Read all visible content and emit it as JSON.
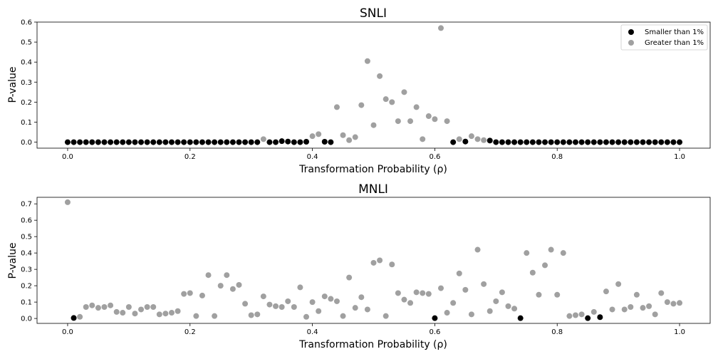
{
  "colors": {
    "smaller": "#000000",
    "greater": "#a0a0a0"
  },
  "chart_data": [
    {
      "type": "scatter",
      "title": "SNLI",
      "xlabel": "Transformation Probability (ρ)",
      "ylabel": "P-value",
      "xlim": [
        -0.05,
        1.05
      ],
      "ylim": [
        -0.03,
        0.6
      ],
      "xticks": [
        "0.0",
        "0.2",
        "0.4",
        "0.6",
        "0.8",
        "1.0"
      ],
      "yticks": [
        "0.0",
        "0.1",
        "0.2",
        "0.3",
        "0.4",
        "0.5",
        "0.6"
      ],
      "grid": false,
      "legend_position": "top-right",
      "series": [
        {
          "name": "Smaller than 1%",
          "color": "#000000",
          "x": [
            0.0,
            0.01,
            0.02,
            0.03,
            0.04,
            0.05,
            0.06,
            0.07,
            0.08,
            0.09,
            0.1,
            0.11,
            0.12,
            0.13,
            0.14,
            0.15,
            0.16,
            0.17,
            0.18,
            0.19,
            0.2,
            0.21,
            0.22,
            0.23,
            0.24,
            0.25,
            0.26,
            0.27,
            0.28,
            0.29,
            0.3,
            0.31,
            0.33,
            0.34,
            0.35,
            0.36,
            0.37,
            0.38,
            0.39,
            0.42,
            0.43,
            0.63,
            0.65,
            0.69,
            0.7,
            0.71,
            0.72,
            0.73,
            0.74,
            0.75,
            0.76,
            0.77,
            0.78,
            0.79,
            0.8,
            0.81,
            0.82,
            0.83,
            0.84,
            0.85,
            0.86,
            0.87,
            0.88,
            0.89,
            0.9,
            0.91,
            0.92,
            0.93,
            0.94,
            0.95,
            0.96,
            0.97,
            0.98,
            0.99,
            1.0
          ],
          "y": [
            0,
            0,
            0,
            0,
            0,
            0,
            0,
            0,
            0,
            0,
            0,
            0,
            0,
            0,
            0,
            0,
            0,
            0,
            0,
            0,
            0,
            0,
            0,
            0,
            0,
            0,
            0,
            0,
            0,
            0,
            0,
            0,
            0,
            0,
            0.005,
            0.003,
            0,
            0,
            0.002,
            0.002,
            0,
            0,
            0.003,
            0.008,
            0,
            0,
            0,
            0,
            0,
            0,
            0,
            0,
            0,
            0,
            0,
            0,
            0,
            0,
            0,
            0,
            0,
            0,
            0,
            0,
            0,
            0,
            0,
            0,
            0,
            0,
            0,
            0,
            0,
            0,
            0
          ]
        },
        {
          "name": "Greater than 1%",
          "color": "#a0a0a0",
          "x": [
            0.32,
            0.4,
            0.41,
            0.44,
            0.45,
            0.46,
            0.47,
            0.48,
            0.49,
            0.5,
            0.51,
            0.52,
            0.53,
            0.54,
            0.55,
            0.56,
            0.57,
            0.58,
            0.59,
            0.6,
            0.61,
            0.62,
            0.64,
            0.66,
            0.67,
            0.68
          ],
          "y": [
            0.015,
            0.03,
            0.04,
            0.175,
            0.035,
            0.01,
            0.025,
            0.185,
            0.405,
            0.085,
            0.33,
            0.215,
            0.2,
            0.105,
            0.25,
            0.105,
            0.175,
            0.015,
            0.13,
            0.115,
            0.57,
            0.105,
            0.015,
            0.03,
            0.015,
            0.01
          ]
        }
      ]
    },
    {
      "type": "scatter",
      "title": "MNLI",
      "xlabel": "Transformation Probability (ρ)",
      "ylabel": "P-value",
      "xlim": [
        -0.05,
        1.05
      ],
      "ylim": [
        -0.03,
        0.74
      ],
      "xticks": [
        "0.0",
        "0.2",
        "0.4",
        "0.6",
        "0.8",
        "1.0"
      ],
      "yticks": [
        "0.0",
        "0.1",
        "0.2",
        "0.3",
        "0.4",
        "0.5",
        "0.6",
        "0.7"
      ],
      "grid": false,
      "series": [
        {
          "name": "Smaller than 1%",
          "color": "#000000",
          "x": [
            0.01,
            0.6,
            0.74,
            0.85,
            0.87
          ],
          "y": [
            0.003,
            0.002,
            0.002,
            0.002,
            0.008
          ]
        },
        {
          "name": "Greater than 1%",
          "color": "#a0a0a0",
          "x": [
            0.0,
            0.02,
            0.03,
            0.04,
            0.05,
            0.06,
            0.07,
            0.08,
            0.09,
            0.1,
            0.11,
            0.12,
            0.13,
            0.14,
            0.15,
            0.16,
            0.17,
            0.18,
            0.19,
            0.2,
            0.21,
            0.22,
            0.23,
            0.24,
            0.25,
            0.26,
            0.27,
            0.28,
            0.29,
            0.3,
            0.31,
            0.32,
            0.33,
            0.34,
            0.35,
            0.36,
            0.37,
            0.38,
            0.39,
            0.4,
            0.41,
            0.42,
            0.43,
            0.44,
            0.45,
            0.46,
            0.47,
            0.48,
            0.49,
            0.5,
            0.51,
            0.52,
            0.53,
            0.54,
            0.55,
            0.56,
            0.57,
            0.58,
            0.59,
            0.61,
            0.62,
            0.63,
            0.64,
            0.65,
            0.66,
            0.67,
            0.68,
            0.69,
            0.7,
            0.71,
            0.72,
            0.73,
            0.75,
            0.76,
            0.77,
            0.78,
            0.79,
            0.8,
            0.81,
            0.82,
            0.83,
            0.84,
            0.86,
            0.88,
            0.89,
            0.9,
            0.91,
            0.92,
            0.93,
            0.94,
            0.95,
            0.96,
            0.97,
            0.98,
            0.99,
            1.0
          ],
          "y": [
            0.71,
            0.01,
            0.07,
            0.08,
            0.065,
            0.07,
            0.08,
            0.04,
            0.035,
            0.07,
            0.03,
            0.055,
            0.07,
            0.07,
            0.025,
            0.03,
            0.035,
            0.045,
            0.15,
            0.155,
            0.015,
            0.14,
            0.265,
            0.015,
            0.2,
            0.265,
            0.18,
            0.205,
            0.09,
            0.02,
            0.025,
            0.135,
            0.085,
            0.075,
            0.07,
            0.105,
            0.07,
            0.19,
            0.01,
            0.1,
            0.045,
            0.135,
            0.12,
            0.105,
            0.015,
            0.25,
            0.065,
            0.13,
            0.055,
            0.34,
            0.355,
            0.015,
            0.33,
            0.155,
            0.115,
            0.095,
            0.16,
            0.155,
            0.15,
            0.185,
            0.035,
            0.095,
            0.275,
            0.175,
            0.025,
            0.42,
            0.21,
            0.045,
            0.105,
            0.16,
            0.075,
            0.06,
            0.4,
            0.28,
            0.145,
            0.325,
            0.42,
            0.145,
            0.4,
            0.015,
            0.02,
            0.025,
            0.04,
            0.165,
            0.055,
            0.21,
            0.055,
            0.07,
            0.145,
            0.065,
            0.075,
            0.025,
            0.155,
            0.1,
            0.09,
            0.095
          ]
        }
      ]
    }
  ]
}
